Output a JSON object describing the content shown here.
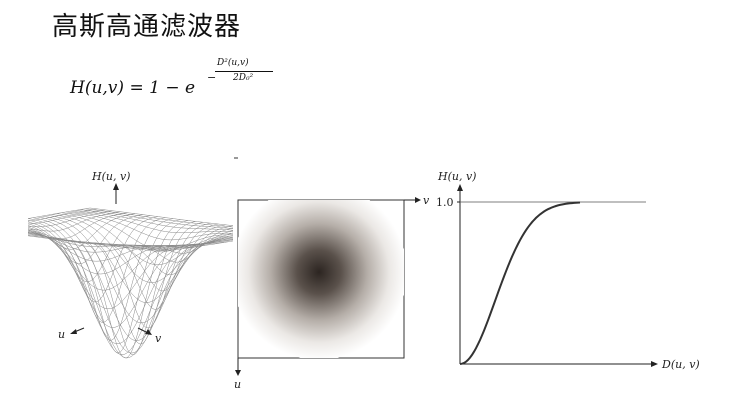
{
  "slide": {
    "title": "高斯高通滤波器"
  },
  "formula": {
    "lhs": "H(u,v) = 1 − e",
    "exponent_sign": "−",
    "exponent_numerator": "D²(u,v)",
    "exponent_denominator": "2D₀²"
  },
  "mesh_plot": {
    "z_label": "H(u, v)",
    "u_label": "u",
    "v_label": "v"
  },
  "image_plot": {
    "v_label": "v",
    "u_label": "u"
  },
  "profile_plot": {
    "y_label": "H(u, v)",
    "x_label": "D(u, v)",
    "y_tick": "1.0"
  },
  "colors": {
    "text": "#111111",
    "mesh_line": "#8a8a8a",
    "curve": "#333333"
  }
}
